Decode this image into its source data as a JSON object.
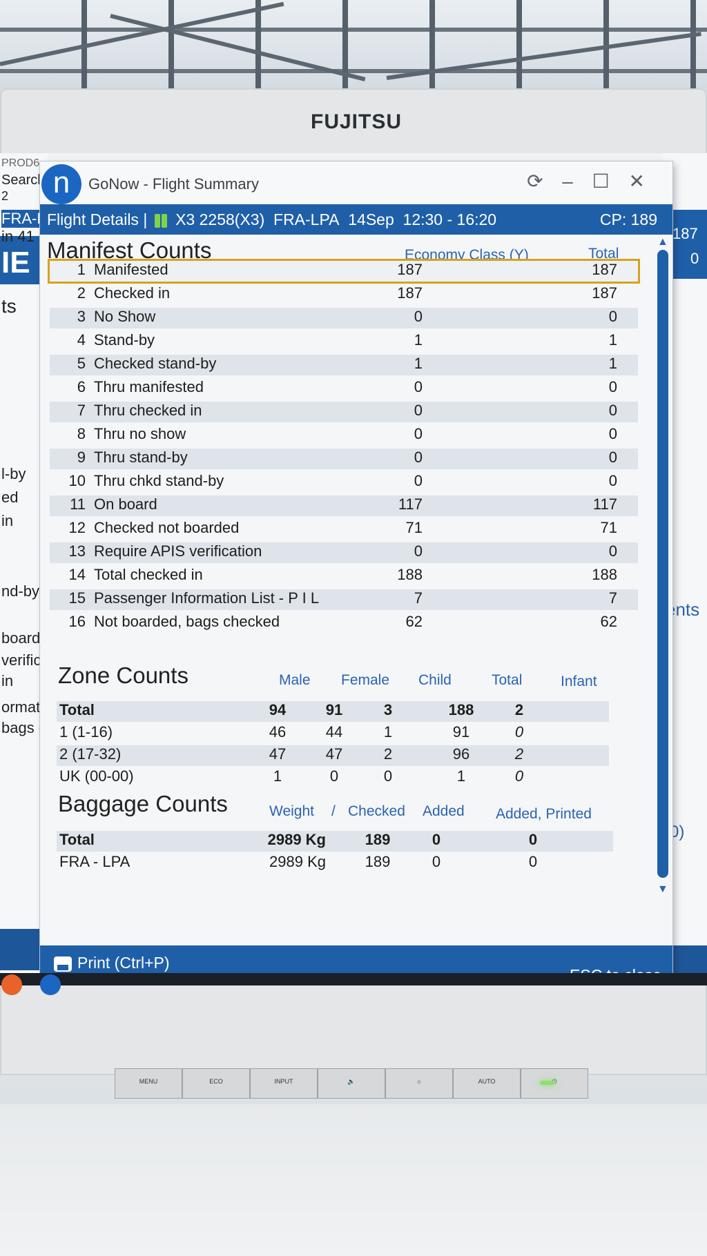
{
  "monitor": {
    "brand": "FUJITSU"
  },
  "window": {
    "title": "GoNow - Flight Summary",
    "logo_letter": "n",
    "controls": "⟳ – ☐ ✕"
  },
  "flight_bar": {
    "label": "Flight Details",
    "flight": "X3 2258(X3)",
    "route": "FRA-LPA",
    "date": "14Sep",
    "times": "12:30 - 16:20",
    "cp": "CP: 189"
  },
  "manifest": {
    "heading": "Manifest Counts",
    "col_a": "Economy Class (Y)",
    "col_b": "Total",
    "rows": [
      {
        "n": "1",
        "label": "Manifested",
        "a": "187",
        "b": "187"
      },
      {
        "n": "2",
        "label": "Checked in",
        "a": "187",
        "b": "187"
      },
      {
        "n": "3",
        "label": "No Show",
        "a": "0",
        "b": "0"
      },
      {
        "n": "4",
        "label": "Stand-by",
        "a": "1",
        "b": "1"
      },
      {
        "n": "5",
        "label": "Checked stand-by",
        "a": "1",
        "b": "1"
      },
      {
        "n": "6",
        "label": "Thru manifested",
        "a": "0",
        "b": "0"
      },
      {
        "n": "7",
        "label": "Thru checked in",
        "a": "0",
        "b": "0"
      },
      {
        "n": "8",
        "label": "Thru no show",
        "a": "0",
        "b": "0"
      },
      {
        "n": "9",
        "label": "Thru stand-by",
        "a": "0",
        "b": "0"
      },
      {
        "n": "10",
        "label": "Thru chkd stand-by",
        "a": "0",
        "b": "0"
      },
      {
        "n": "11",
        "label": "On board",
        "a": "117",
        "b": "117"
      },
      {
        "n": "12",
        "label": "Checked not boarded",
        "a": "71",
        "b": "71"
      },
      {
        "n": "13",
        "label": "Require APIS verification",
        "a": "0",
        "b": "0"
      },
      {
        "n": "14",
        "label": "Total checked in",
        "a": "188",
        "b": "188"
      },
      {
        "n": "15",
        "label": "Passenger Information List - P I L",
        "a": "7",
        "b": "7"
      },
      {
        "n": "16",
        "label": "Not boarded, bags checked",
        "a": "62",
        "b": "62"
      }
    ]
  },
  "zones": {
    "heading": "Zone Counts",
    "headers": {
      "male": "Male",
      "female": "Female",
      "child": "Child",
      "total": "Total",
      "infant": "Infant"
    },
    "rows": [
      {
        "label": "Total",
        "male": "94",
        "female": "91",
        "child": "3",
        "total": "188",
        "infant": "2"
      },
      {
        "label": "1 (1-16)",
        "male": "46",
        "female": "44",
        "child": "1",
        "total": "91",
        "infant": "0"
      },
      {
        "label": "2 (17-32)",
        "male": "47",
        "female": "47",
        "child": "2",
        "total": "96",
        "infant": "2"
      },
      {
        "label": "UK (00-00)",
        "male": "1",
        "female": "0",
        "child": "0",
        "total": "1",
        "infant": "0"
      }
    ]
  },
  "baggage": {
    "heading": "Baggage Counts",
    "headers": {
      "weight": "Weight",
      "sep": "/",
      "checked": "Checked",
      "added": "Added",
      "added_printed": "Added, Printed"
    },
    "rows": [
      {
        "label": "Total",
        "weight": "2989 Kg",
        "checked": "189",
        "added": "0",
        "added_printed": "0"
      },
      {
        "label": "FRA - LPA",
        "weight": "2989 Kg",
        "checked": "189",
        "added": "0",
        "added_printed": "0"
      }
    ]
  },
  "footer": {
    "print_label": "Print (Ctrl+P)",
    "esc_label": "ESC to close"
  },
  "background_app": {
    "left_lines": [
      "PROD6",
      "Searcl",
      "2",
      "FRA-L",
      "in 41",
      "IE",
      "ts",
      "l-by",
      "ed",
      "in",
      "nd-by",
      "boarde",
      "verific",
      "in",
      "ormat",
      "bags c"
    ],
    "right_lines": [
      "187",
      "0",
      "ents",
      "(0)"
    ]
  },
  "monitor_buttons": [
    "MENU",
    "ECO",
    "INPUT",
    "🔈",
    "☼",
    "AUTO",
    "⏻"
  ],
  "colors": {
    "accent": "#1f5fa8",
    "highlight": "#d7a21c",
    "header_text": "#2d62b0"
  }
}
